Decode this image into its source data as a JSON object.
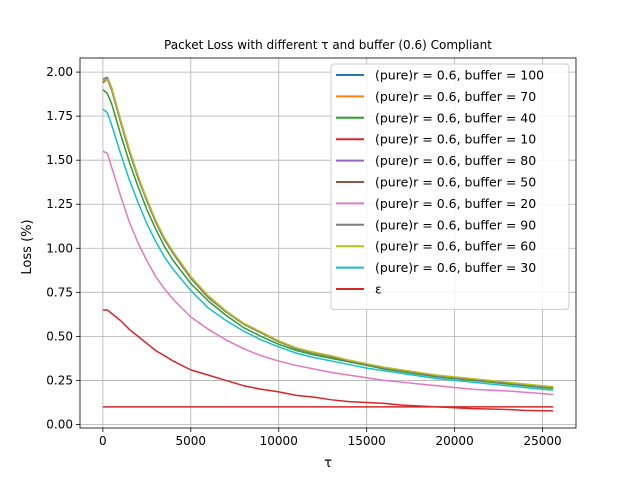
{
  "chart_data": {
    "type": "line",
    "title": "Packet Loss with different τ and buffer (0.6) Compliant",
    "xlabel": "τ",
    "ylabel": "Loss (%)",
    "xlim": [
      -1300,
      26900
    ],
    "ylim": [
      -0.02,
      2.08
    ],
    "xticks": [
      0,
      5000,
      10000,
      15000,
      20000,
      25000
    ],
    "xtick_labels": [
      "0",
      "5000",
      "10000",
      "15000",
      "20000",
      "25000"
    ],
    "yticks": [
      0.0,
      0.25,
      0.5,
      0.75,
      1.0,
      1.25,
      1.5,
      1.75,
      2.0
    ],
    "ytick_labels": [
      "0.00",
      "0.25",
      "0.50",
      "0.75",
      "1.00",
      "1.25",
      "1.50",
      "1.75",
      "2.00"
    ],
    "grid": true,
    "legend_position": "top-right",
    "x": [
      0,
      250,
      500,
      1000,
      1500,
      2000,
      2500,
      3000,
      3500,
      4000,
      5000,
      6000,
      7000,
      8000,
      9000,
      10000,
      11000,
      12000,
      13000,
      14000,
      15000,
      16000,
      17000,
      18000,
      19000,
      20000,
      21000,
      22000,
      23000,
      24000,
      25000,
      25600
    ],
    "series": [
      {
        "name": "(pure)r = 0.6, buffer = 100",
        "color": "#1f77b4",
        "values": [
          1.95,
          1.96,
          1.9,
          1.72,
          1.55,
          1.4,
          1.27,
          1.15,
          1.05,
          0.97,
          0.83,
          0.72,
          0.64,
          0.57,
          0.52,
          0.47,
          0.43,
          0.405,
          0.385,
          0.36,
          0.34,
          0.32,
          0.305,
          0.29,
          0.275,
          0.265,
          0.255,
          0.245,
          0.235,
          0.225,
          0.215,
          0.21
        ]
      },
      {
        "name": "(pure)r = 0.6, buffer = 70",
        "color": "#ff7f0e",
        "values": [
          1.96,
          1.97,
          1.91,
          1.73,
          1.56,
          1.41,
          1.27,
          1.15,
          1.05,
          0.97,
          0.83,
          0.72,
          0.64,
          0.57,
          0.52,
          0.47,
          0.43,
          0.405,
          0.385,
          0.36,
          0.34,
          0.32,
          0.305,
          0.29,
          0.275,
          0.265,
          0.255,
          0.245,
          0.235,
          0.225,
          0.215,
          0.21
        ]
      },
      {
        "name": "(pure)r = 0.6, buffer = 40",
        "color": "#2ca02c",
        "values": [
          1.9,
          1.88,
          1.82,
          1.65,
          1.49,
          1.35,
          1.22,
          1.11,
          1.01,
          0.93,
          0.8,
          0.7,
          0.62,
          0.55,
          0.5,
          0.455,
          0.42,
          0.395,
          0.375,
          0.355,
          0.335,
          0.315,
          0.3,
          0.285,
          0.27,
          0.26,
          0.25,
          0.24,
          0.23,
          0.22,
          0.21,
          0.205
        ]
      },
      {
        "name": "(pure)r = 0.6, buffer = 10",
        "color": "#d62728",
        "values": [
          0.65,
          0.65,
          0.63,
          0.59,
          0.54,
          0.5,
          0.46,
          0.42,
          0.39,
          0.36,
          0.31,
          0.28,
          0.25,
          0.22,
          0.2,
          0.185,
          0.165,
          0.155,
          0.14,
          0.13,
          0.125,
          0.12,
          0.11,
          0.105,
          0.1,
          0.095,
          0.09,
          0.088,
          0.085,
          0.08,
          0.078,
          0.077
        ]
      },
      {
        "name": "(pure)r = 0.6, buffer = 80",
        "color": "#9467bd",
        "values": [
          1.95,
          1.97,
          1.91,
          1.73,
          1.56,
          1.41,
          1.27,
          1.15,
          1.05,
          0.97,
          0.83,
          0.72,
          0.64,
          0.57,
          0.52,
          0.47,
          0.43,
          0.405,
          0.385,
          0.36,
          0.34,
          0.32,
          0.305,
          0.29,
          0.275,
          0.265,
          0.255,
          0.245,
          0.235,
          0.225,
          0.215,
          0.21
        ]
      },
      {
        "name": "(pure)r = 0.6, buffer = 50",
        "color": "#8c564b",
        "values": [
          1.94,
          1.96,
          1.9,
          1.72,
          1.55,
          1.4,
          1.27,
          1.15,
          1.05,
          0.97,
          0.83,
          0.72,
          0.64,
          0.57,
          0.52,
          0.47,
          0.43,
          0.405,
          0.385,
          0.36,
          0.34,
          0.32,
          0.305,
          0.29,
          0.275,
          0.265,
          0.255,
          0.245,
          0.235,
          0.225,
          0.215,
          0.21
        ]
      },
      {
        "name": "(pure)r = 0.6, buffer = 20",
        "color": "#e377c2",
        "values": [
          1.55,
          1.54,
          1.46,
          1.3,
          1.15,
          1.03,
          0.93,
          0.84,
          0.77,
          0.71,
          0.61,
          0.54,
          0.48,
          0.43,
          0.39,
          0.36,
          0.335,
          0.315,
          0.295,
          0.28,
          0.265,
          0.25,
          0.24,
          0.23,
          0.22,
          0.21,
          0.2,
          0.195,
          0.19,
          0.183,
          0.175,
          0.17
        ]
      },
      {
        "name": "(pure)r = 0.6, buffer = 90",
        "color": "#7f7f7f",
        "values": [
          1.96,
          1.97,
          1.91,
          1.73,
          1.56,
          1.41,
          1.27,
          1.15,
          1.05,
          0.97,
          0.83,
          0.72,
          0.64,
          0.57,
          0.52,
          0.47,
          0.43,
          0.405,
          0.385,
          0.36,
          0.34,
          0.32,
          0.305,
          0.29,
          0.275,
          0.265,
          0.255,
          0.245,
          0.235,
          0.225,
          0.215,
          0.21
        ]
      },
      {
        "name": "(pure)r = 0.6, buffer = 60",
        "color": "#bcbd22",
        "values": [
          1.95,
          1.96,
          1.91,
          1.73,
          1.56,
          1.41,
          1.28,
          1.16,
          1.06,
          0.98,
          0.84,
          0.73,
          0.645,
          0.575,
          0.525,
          0.475,
          0.435,
          0.41,
          0.39,
          0.365,
          0.345,
          0.325,
          0.31,
          0.295,
          0.28,
          0.27,
          0.26,
          0.25,
          0.24,
          0.23,
          0.22,
          0.215
        ]
      },
      {
        "name": "(pure)r = 0.6, buffer = 30",
        "color": "#17becf",
        "values": [
          1.79,
          1.77,
          1.7,
          1.54,
          1.39,
          1.26,
          1.14,
          1.04,
          0.95,
          0.88,
          0.76,
          0.66,
          0.59,
          0.53,
          0.48,
          0.44,
          0.405,
          0.38,
          0.36,
          0.34,
          0.32,
          0.305,
          0.29,
          0.275,
          0.26,
          0.25,
          0.24,
          0.23,
          0.22,
          0.21,
          0.2,
          0.195
        ]
      },
      {
        "name": "ε",
        "color": "#d62728",
        "values": [
          0.1,
          0.1,
          0.1,
          0.1,
          0.1,
          0.1,
          0.1,
          0.1,
          0.1,
          0.1,
          0.1,
          0.1,
          0.1,
          0.1,
          0.1,
          0.1,
          0.1,
          0.1,
          0.1,
          0.1,
          0.1,
          0.1,
          0.1,
          0.1,
          0.1,
          0.1,
          0.1,
          0.1,
          0.1,
          0.1,
          0.1,
          0.1
        ]
      }
    ]
  }
}
